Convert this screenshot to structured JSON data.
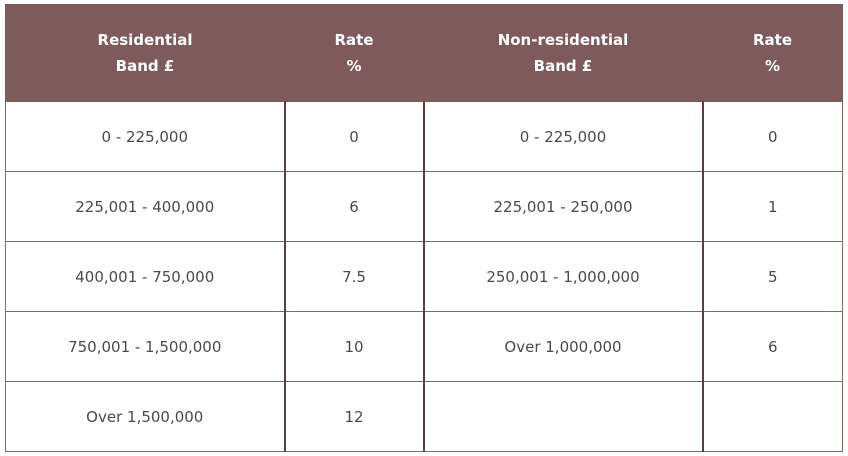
{
  "table": {
    "headers": [
      {
        "line1": "Residential",
        "line2": "Band £"
      },
      {
        "line1": "Rate",
        "line2": "%"
      },
      {
        "line1": "Non-residential",
        "line2": "Band £"
      },
      {
        "line1": "Rate",
        "line2": "%"
      }
    ],
    "rows": [
      [
        "0 - 225,000",
        "0",
        "0 - 225,000",
        "0"
      ],
      [
        "225,001 - 400,000",
        "6",
        "225,001 - 250,000",
        "1"
      ],
      [
        "400,001 - 750,000",
        "7.5",
        "250,001 - 1,000,000",
        "5"
      ],
      [
        "750,001 - 1,500,000",
        "10",
        "Over 1,000,000",
        "6"
      ],
      [
        "Over 1,500,000",
        "12",
        "",
        ""
      ]
    ]
  },
  "colors": {
    "header_bg": "#7f5a5a",
    "header_text": "#ffffff",
    "border": "#8b6464"
  }
}
